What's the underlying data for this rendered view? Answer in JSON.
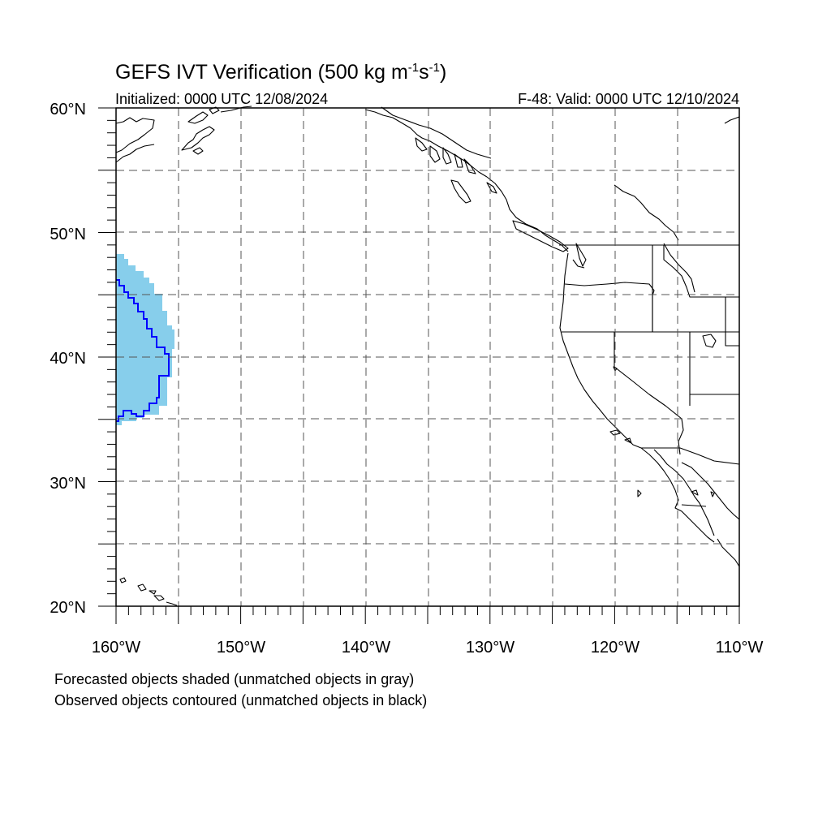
{
  "title": {
    "main": "GEFS IVT Verification (500 kg m",
    "exp1": "-1",
    "mid": "s",
    "exp2": "-1",
    "close": ")"
  },
  "subtitle_left": "Initialized: 0000 UTC 12/08/2024",
  "subtitle_right": "F-48: Valid: 0000 UTC 12/10/2024",
  "lat_labels": [
    "60°N",
    "50°N",
    "40°N",
    "30°N",
    "20°N"
  ],
  "lon_labels": [
    "160°W",
    "150°W",
    "140°W",
    "130°W",
    "120°W",
    "110°W"
  ],
  "footnotes": [
    "Forecasted objects shaded (unmatched objects in gray)",
    "Observed objects contoured (unmatched objects in black)"
  ],
  "map": {
    "lon_range": [
      -160,
      -110
    ],
    "lat_range": [
      20,
      60
    ],
    "grid_spacing_deg": 5,
    "grid_style": "dashed",
    "forecast_object_color": "#87ceeb",
    "observed_object_color": "#0000ff",
    "coastline_color": "#000000"
  }
}
